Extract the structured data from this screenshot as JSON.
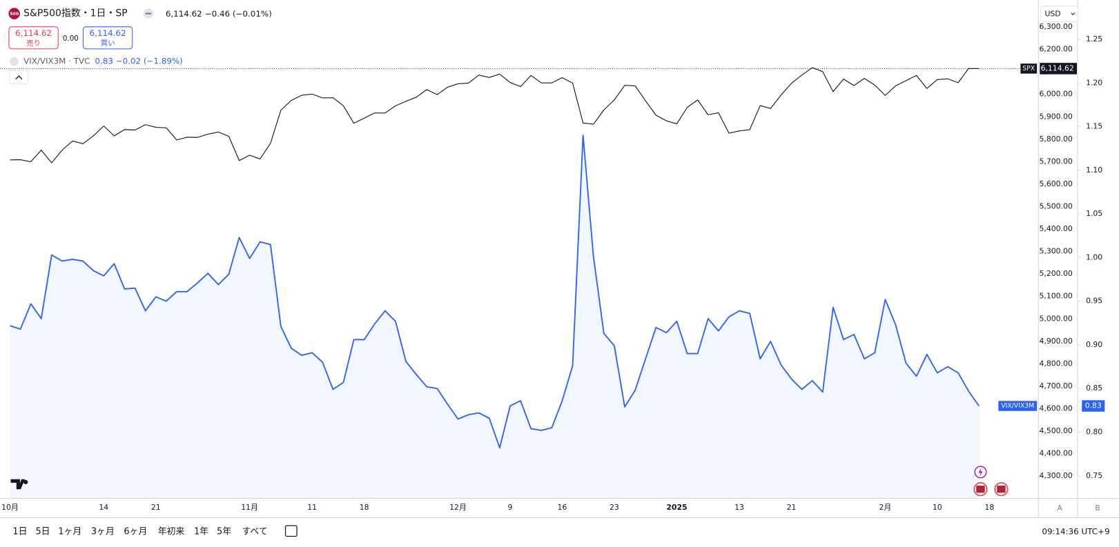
{
  "header": {
    "logo": "500",
    "symbol": "S&P500指数・1日・SP",
    "last": "6,114.62",
    "change": "−0.46 (−0.01%)",
    "sell_price": "6,114.62",
    "sell_label": "売り",
    "spread": "0.00",
    "buy_price": "6,114.62",
    "buy_label": "買い",
    "study": "VIX/VIX3M · TVC",
    "study_values": "0.83 −0.02 (−1.89%)",
    "currency": "USD",
    "spx_tag": "SPX",
    "spx_price": "6,114.62",
    "vix_tag": "VIX/VIX3M",
    "vix_price": "0.83",
    "axis_a": "A",
    "axis_b": "B"
  },
  "toolbar": {
    "ranges": [
      "1日",
      "5日",
      "1ヶ月",
      "3ヶ月",
      "6ヶ月",
      "年初来",
      "1年",
      "5年",
      "すべて"
    ],
    "clock": "09:14:36 UTC+9"
  },
  "chart_data": {
    "type": "line",
    "categories": [
      "10月",
      null,
      null,
      null,
      null,
      null,
      null,
      null,
      null,
      "14",
      null,
      null,
      null,
      null,
      "21",
      null,
      null,
      null,
      null,
      null,
      null,
      null,
      null,
      "11月",
      null,
      null,
      null,
      null,
      null,
      "11",
      null,
      null,
      null,
      null,
      "18",
      null,
      null,
      null,
      null,
      null,
      null,
      null,
      null,
      "12月",
      null,
      null,
      null,
      null,
      "9",
      null,
      null,
      null,
      null,
      "16",
      null,
      null,
      null,
      null,
      "23",
      null,
      null,
      null,
      null,
      null,
      "2025",
      null,
      null,
      null,
      null,
      null,
      "13",
      null,
      null,
      null,
      null,
      "21",
      null,
      null,
      null,
      null,
      null,
      null,
      null,
      null,
      "2月",
      null,
      null,
      null,
      null,
      "10",
      null,
      null,
      null,
      null,
      "18"
    ],
    "series": [
      {
        "name": "SPX",
        "color": "#131722",
        "values": [
          5708,
          5709,
          5700,
          5751,
          5695,
          5751,
          5792,
          5780,
          5815,
          5859,
          5815,
          5843,
          5841,
          5865,
          5853,
          5851,
          5797,
          5809,
          5808,
          5823,
          5832,
          5813,
          5705,
          5729,
          5712,
          5782,
          5929,
          5973,
          5996,
          6001,
          5984,
          5985,
          5949,
          5871,
          5894,
          5917,
          5917,
          5949,
          5969,
          5987,
          6021,
          5999,
          6032,
          6047,
          6050,
          6086,
          6075,
          6090,
          6053,
          6034,
          6084,
          6051,
          6051,
          6074,
          6050,
          5872,
          5867,
          5931,
          5975,
          6040,
          6038,
          5971,
          5907,
          5882,
          5869,
          5942,
          5975,
          5909,
          5918,
          5827,
          5837,
          5843,
          5950,
          5937,
          5997,
          6049,
          6086,
          6119,
          6101,
          6012,
          6068,
          6039,
          6071,
          6041,
          5995,
          6038,
          6061,
          6084,
          6026,
          6066,
          6069,
          6052,
          6115,
          6114.62,
          null
        ]
      },
      {
        "name": "VIX/VIX3M",
        "color": "#2962ff",
        "axis": "y2",
        "values": [
          0.922,
          0.918,
          0.947,
          0.93,
          1.003,
          0.996,
          0.998,
          0.996,
          0.985,
          0.979,
          0.993,
          0.964,
          0.965,
          0.939,
          0.955,
          0.95,
          0.961,
          0.961,
          0.971,
          0.982,
          0.969,
          0.981,
          1.023,
          0.999,
          1.018,
          1.015,
          0.921,
          0.896,
          0.888,
          0.891,
          0.88,
          0.849,
          0.857,
          0.906,
          0.906,
          0.924,
          0.939,
          0.927,
          0.881,
          0.866,
          0.852,
          0.85,
          0.832,
          0.815,
          0.82,
          0.822,
          0.816,
          0.782,
          0.83,
          0.836,
          0.804,
          0.802,
          0.805,
          0.836,
          0.876,
          1.14,
          1.001,
          0.913,
          0.899,
          0.829,
          0.848,
          0.884,
          0.92,
          0.914,
          0.927,
          0.89,
          0.89,
          0.93,
          0.916,
          0.932,
          0.939,
          0.936,
          0.884,
          0.904,
          0.877,
          0.861,
          0.849,
          0.859,
          0.846,
          0.943,
          0.906,
          0.912,
          0.884,
          0.891,
          0.952,
          0.923,
          0.879,
          0.864,
          0.889,
          0.868,
          0.875,
          0.868,
          0.847,
          0.83,
          null
        ]
      }
    ],
    "ylim": [
      4200,
      6420
    ],
    "yticks": [
      {
        "value": 4300,
        "label": "4,300.00"
      },
      {
        "value": 4400,
        "label": "4,400.00"
      },
      {
        "value": 4500,
        "label": "4,500.00"
      },
      {
        "value": 4600,
        "label": "4,600.00"
      },
      {
        "value": 4700,
        "label": "4,700.00"
      },
      {
        "value": 4800,
        "label": "4,800.00"
      },
      {
        "value": 4900,
        "label": "4,900.00"
      },
      {
        "value": 5000,
        "label": "5,000.00"
      },
      {
        "value": 5100,
        "label": "5,100.00"
      },
      {
        "value": 5200,
        "label": "5,200.00"
      },
      {
        "value": 5300,
        "label": "5,300.00"
      },
      {
        "value": 5400,
        "label": "5,400.00"
      },
      {
        "value": 5500,
        "label": "5,500.00"
      },
      {
        "value": 5600,
        "label": "5,600.00"
      },
      {
        "value": 5700,
        "label": "5,700.00"
      },
      {
        "value": 5800,
        "label": "5,800.00"
      },
      {
        "value": 5900,
        "label": "5,900.00"
      },
      {
        "value": 6000,
        "label": "6,000.00"
      },
      {
        "value": 6100,
        "label": "6,100.00"
      },
      {
        "value": 6200,
        "label": "6,200.00"
      },
      {
        "value": 6300,
        "label": "6,300.00"
      }
    ],
    "y2lim": [
      0.724,
      1.295
    ],
    "y2ticks": [
      0.75,
      {
        "value": 0.8,
        "label": "0.80"
      },
      0.85,
      {
        "value": 0.9,
        "label": "0.90"
      },
      0.95,
      {
        "value": 1.0,
        "label": "1.00"
      },
      1.05,
      {
        "value": 1.1,
        "label": "1.10"
      },
      1.15,
      {
        "value": 1.2,
        "label": "1.20"
      },
      1.25
    ],
    "grid": false,
    "area_fill": "rgba(41,98,255,0.06)"
  }
}
